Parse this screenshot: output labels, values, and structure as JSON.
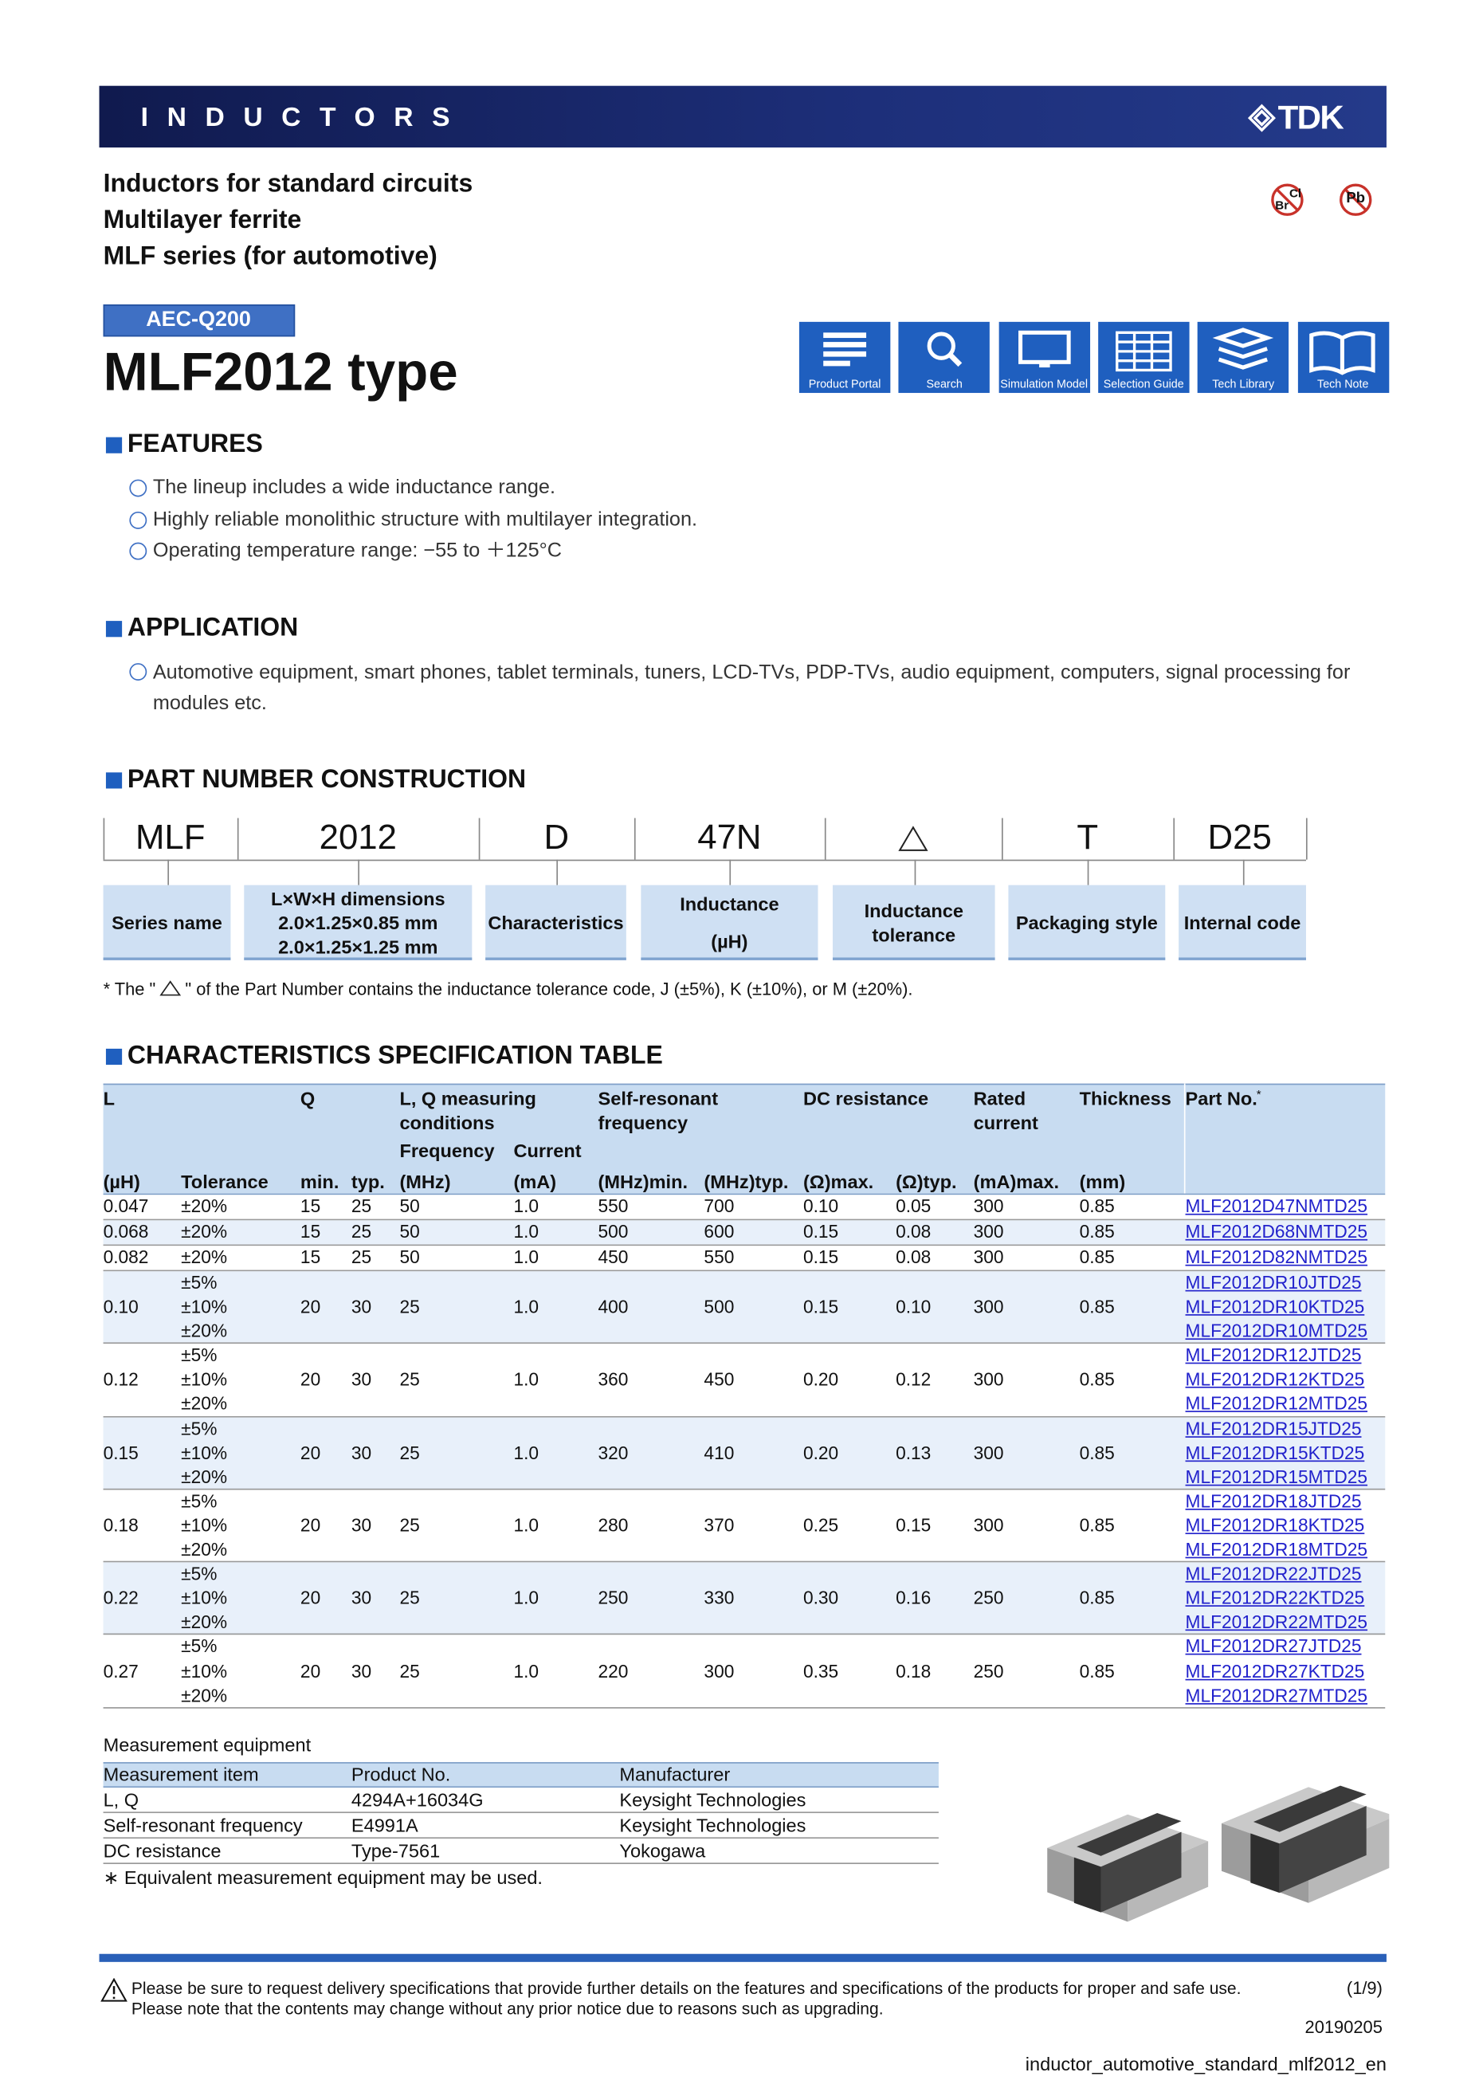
{
  "header": {
    "banner": "INDUCTORS",
    "brand": "TDK"
  },
  "series_lines": [
    "Inductors for standard circuits",
    "Multilayer ferrite",
    "MLF series (for automotive)"
  ],
  "compliance_icons": {
    "halogen": [
      "Cl",
      "Br"
    ],
    "lead": "Pb"
  },
  "badge": "AEC-Q200",
  "title": "MLF2012 type",
  "tools": [
    "Product Portal",
    "Search",
    "Simulation Model",
    "Selection Guide",
    "Tech Library",
    "Tech Note"
  ],
  "features": {
    "heading": "FEATURES",
    "items": [
      "The lineup includes a wide inductance range.",
      "Highly reliable monolithic structure with multilayer integration.",
      "Operating temperature range: −55 to ＋125°C"
    ]
  },
  "application": {
    "heading": "APPLICATION",
    "items": [
      "Automotive equipment, smart phones, tablet terminals, tuners, LCD-TVs, PDP-TVs, audio equipment, computers, signal processing for modules etc."
    ]
  },
  "part_number": {
    "heading": "PART NUMBER CONSTRUCTION",
    "fields": [
      {
        "code": "MLF",
        "label": [
          "Series name"
        ]
      },
      {
        "code": "2012",
        "label": [
          "L×W×H dimensions",
          "2.0×1.25×0.85 mm",
          "2.0×1.25×1.25 mm"
        ]
      },
      {
        "code": "D",
        "label": [
          "Characteristics"
        ]
      },
      {
        "code": "47N",
        "label": [
          "Inductance",
          "(µH)"
        ]
      },
      {
        "label": [
          "Inductance",
          "tolerance"
        ]
      },
      {
        "code": "T",
        "label": [
          "Packaging style"
        ]
      },
      {
        "code": "D25",
        "label": [
          "Internal code"
        ]
      }
    ],
    "note": [
      "* The \"",
      "\" of the Part Number contains the inductance tolerance code, J (±5%), K (±10%), or M (±20%)."
    ]
  },
  "spec_table": {
    "heading": "CHARACTERISTICS SPECIFICATION TABLE",
    "groups": [
      "L",
      "Q",
      "L, Q measuring conditions",
      "Self-resonant frequency",
      "DC resistance",
      "Rated current",
      "Thickness"
    ],
    "part_no": {
      "text": "Part No.",
      "mark": "*"
    },
    "sub": [
      "Frequency",
      "Current"
    ],
    "units": [
      "(µH)",
      "Tolerance",
      "min.",
      "typ.",
      "(MHz)",
      "(mA)",
      "(MHz)min.",
      "(MHz)typ.",
      "(Ω)max.",
      "(Ω)typ.",
      "(mA)max.",
      "(mm)"
    ],
    "rows": [
      {
        "cells": [
          "0.047",
          "15",
          "25",
          "50",
          "1.0",
          "550",
          "700",
          "0.10",
          "0.05",
          "300",
          "0.85"
        ],
        "variants": [
          {
            "tolerance": "±20%",
            "part": "MLF2012D47NMTD25"
          }
        ]
      },
      {
        "cells": [
          "0.068",
          "15",
          "25",
          "50",
          "1.0",
          "500",
          "600",
          "0.15",
          "0.08",
          "300",
          "0.85"
        ],
        "variants": [
          {
            "tolerance": "±20%",
            "part": "MLF2012D68NMTD25"
          }
        ]
      },
      {
        "cells": [
          "0.082",
          "15",
          "25",
          "50",
          "1.0",
          "450",
          "550",
          "0.15",
          "0.08",
          "300",
          "0.85"
        ],
        "variants": [
          {
            "tolerance": "±20%",
            "part": "MLF2012D82NMTD25"
          }
        ]
      },
      {
        "cells": [
          "0.10",
          "20",
          "30",
          "25",
          "1.0",
          "400",
          "500",
          "0.15",
          "0.10",
          "300",
          "0.85"
        ],
        "variants": [
          {
            "tolerance": "±5%",
            "part": "MLF2012DR10JTD25"
          },
          {
            "tolerance": "±10%",
            "part": "MLF2012DR10KTD25"
          },
          {
            "tolerance": "±20%",
            "part": "MLF2012DR10MTD25"
          }
        ]
      },
      {
        "cells": [
          "0.12",
          "20",
          "30",
          "25",
          "1.0",
          "360",
          "450",
          "0.20",
          "0.12",
          "300",
          "0.85"
        ],
        "variants": [
          {
            "tolerance": "±5%",
            "part": "MLF2012DR12JTD25"
          },
          {
            "tolerance": "±10%",
            "part": "MLF2012DR12KTD25"
          },
          {
            "tolerance": "±20%",
            "part": "MLF2012DR12MTD25"
          }
        ]
      },
      {
        "cells": [
          "0.15",
          "20",
          "30",
          "25",
          "1.0",
          "320",
          "410",
          "0.20",
          "0.13",
          "300",
          "0.85"
        ],
        "variants": [
          {
            "tolerance": "±5%",
            "part": "MLF2012DR15JTD25"
          },
          {
            "tolerance": "±10%",
            "part": "MLF2012DR15KTD25"
          },
          {
            "tolerance": "±20%",
            "part": "MLF2012DR15MTD25"
          }
        ]
      },
      {
        "cells": [
          "0.18",
          "20",
          "30",
          "25",
          "1.0",
          "280",
          "370",
          "0.25",
          "0.15",
          "300",
          "0.85"
        ],
        "variants": [
          {
            "tolerance": "±5%",
            "part": "MLF2012DR18JTD25"
          },
          {
            "tolerance": "±10%",
            "part": "MLF2012DR18KTD25"
          },
          {
            "tolerance": "±20%",
            "part": "MLF2012DR18MTD25"
          }
        ]
      },
      {
        "cells": [
          "0.22",
          "20",
          "30",
          "25",
          "1.0",
          "250",
          "330",
          "0.30",
          "0.16",
          "250",
          "0.85"
        ],
        "variants": [
          {
            "tolerance": "±5%",
            "part": "MLF2012DR22JTD25"
          },
          {
            "tolerance": "±10%",
            "part": "MLF2012DR22KTD25"
          },
          {
            "tolerance": "±20%",
            "part": "MLF2012DR22MTD25"
          }
        ]
      },
      {
        "cells": [
          "0.27",
          "20",
          "30",
          "25",
          "1.0",
          "220",
          "300",
          "0.35",
          "0.18",
          "250",
          "0.85"
        ],
        "variants": [
          {
            "tolerance": "±5%",
            "part": "MLF2012DR27JTD25"
          },
          {
            "tolerance": "±10%",
            "part": "MLF2012DR27KTD25"
          },
          {
            "tolerance": "±20%",
            "part": "MLF2012DR27MTD25"
          }
        ]
      }
    ]
  },
  "measurement": {
    "title": "Measurement equipment",
    "columns": [
      "Measurement item",
      "Product No.",
      "Manufacturer"
    ],
    "rows": [
      [
        "L, Q",
        "4294A+16034G",
        "Keysight Technologies"
      ],
      [
        "Self-resonant frequency",
        "E4991A",
        "Keysight Technologies"
      ],
      [
        "DC resistance",
        "Type-7561",
        "Yokogawa"
      ]
    ],
    "note": "∗ Equivalent measurement equipment may be used."
  },
  "footer": {
    "notice": [
      "Please be sure to request delivery specifications that provide further details on the features and specifications of the products for proper and safe use.",
      "Please note that the contents may change without any prior notice due to reasons such as upgrading."
    ],
    "page": "(1/9)",
    "date": "20190205",
    "document": "inductor_automotive_standard_mlf2012_en"
  }
}
